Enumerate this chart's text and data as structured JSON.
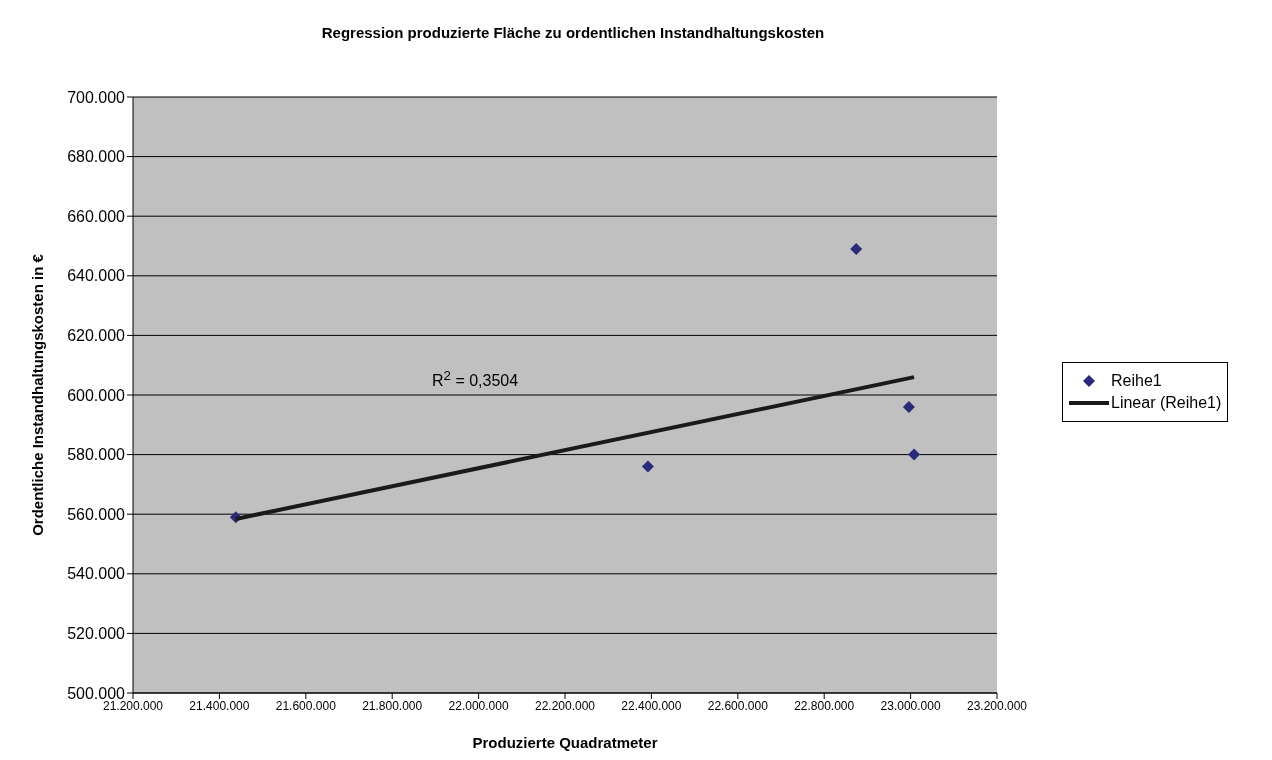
{
  "chart_data": {
    "type": "scatter",
    "title": "Regression produzierte Fläche zu ordentlichen Instandhaltungskosten",
    "xlabel": "Produzierte Quadratmeter",
    "ylabel": "Ordentliche Instandhaltungskosten in €",
    "annotations": [
      "R$^{2}$ = 0,3504"
    ],
    "series": [
      {
        "name": "Reihe1",
        "color": "#2b2b7b",
        "marker": "diamond",
        "x": [
          21438000,
          22392000,
          22874000,
          22996000,
          23008000
        ],
        "values": [
          559000,
          576000,
          649000,
          596000,
          580000
        ]
      },
      {
        "name": "Linear (Reihe1)",
        "type": "line",
        "color": "#1a1a1a",
        "line_style": "solid",
        "marker": "none",
        "x": [
          21438000,
          23008000
        ],
        "values": [
          558400,
          606000
        ]
      }
    ],
    "xlim": [
      21200000,
      23200000
    ],
    "xticks": [
      {
        "value": 21200000,
        "label": "21.200.000"
      },
      {
        "value": 21400000,
        "label": "21.400.000"
      },
      {
        "value": 21600000,
        "label": "21.600.000"
      },
      {
        "value": 21800000,
        "label": "21.800.000"
      },
      {
        "value": 22000000,
        "label": "22.000.000"
      },
      {
        "value": 22200000,
        "label": "22.200.000"
      },
      {
        "value": 22400000,
        "label": "22.400.000"
      },
      {
        "value": 22600000,
        "label": "22.600.000"
      },
      {
        "value": 22800000,
        "label": "22.800.000"
      },
      {
        "value": 23000000,
        "label": "23.000.000"
      },
      {
        "value": 23200000,
        "label": "23.200.000"
      }
    ],
    "ylim": [
      500000,
      700000
    ],
    "yticks": [
      {
        "value": 500000,
        "label": "500.000"
      },
      {
        "value": 520000,
        "label": "520.000"
      },
      {
        "value": 540000,
        "label": "540.000"
      },
      {
        "value": 560000,
        "label": "560.000"
      },
      {
        "value": 580000,
        "label": "580.000"
      },
      {
        "value": 600000,
        "label": "600.000"
      },
      {
        "value": 620000,
        "label": "620.000"
      },
      {
        "value": 640000,
        "label": "640.000"
      },
      {
        "value": 660000,
        "label": "660.000"
      },
      {
        "value": 680000,
        "label": "680.000"
      },
      {
        "value": 700000,
        "label": "700.000"
      }
    ],
    "grid": "y",
    "legend": "right"
  }
}
